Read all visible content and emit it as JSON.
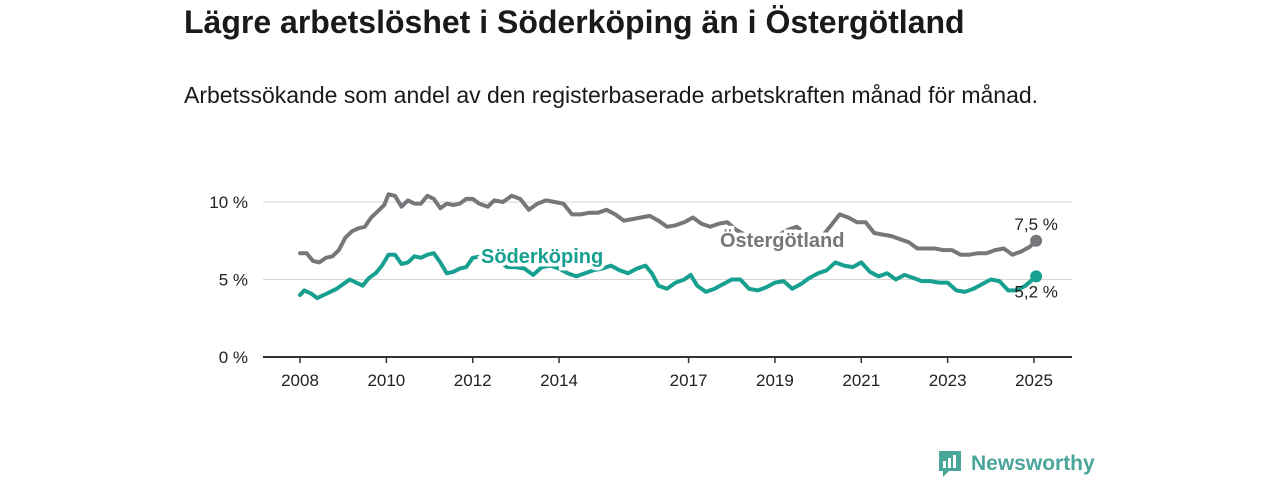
{
  "title": "Lägre arbetslöshet i Söderköping än i Östergötland",
  "subtitle": "Arbetssökande som andel av den registerbaserade arbetskraften månad för månad.",
  "brand": {
    "name": "Newsworthy",
    "icon": "bar-chart-badge-icon",
    "color": "#4aa59a"
  },
  "chart_data": {
    "type": "line",
    "title": "Lägre arbetslöshet i Söderköping än i Östergötland",
    "ylim": [
      0,
      11
    ],
    "yticks": [
      0,
      5,
      10
    ],
    "ytick_labels": [
      "0 %",
      "5 %",
      "10 %"
    ],
    "xlim": [
      2007.3,
      2026.0
    ],
    "xticks": [
      2008,
      2010,
      2012,
      2014,
      2017,
      2019,
      2021,
      2023,
      2025
    ],
    "xtick_labels": [
      "2008",
      "2010",
      "2012",
      "2014",
      "2017",
      "2019",
      "2021",
      "2023",
      "2025"
    ],
    "grid": true,
    "legend": "inline labels",
    "series": [
      {
        "name": "Östergötland",
        "color": "#77767b",
        "end_label": "7,5 %",
        "points": [
          [
            2008.0,
            6.7
          ],
          [
            2008.15,
            6.7
          ],
          [
            2008.3,
            6.2
          ],
          [
            2008.45,
            6.1
          ],
          [
            2008.6,
            6.4
          ],
          [
            2008.75,
            6.5
          ],
          [
            2008.9,
            6.9
          ],
          [
            2009.05,
            7.7
          ],
          [
            2009.2,
            8.1
          ],
          [
            2009.35,
            8.3
          ],
          [
            2009.5,
            8.4
          ],
          [
            2009.65,
            9.0
          ],
          [
            2009.8,
            9.4
          ],
          [
            2009.95,
            9.8
          ],
          [
            2010.05,
            10.5
          ],
          [
            2010.2,
            10.4
          ],
          [
            2010.35,
            9.7
          ],
          [
            2010.5,
            10.1
          ],
          [
            2010.65,
            9.9
          ],
          [
            2010.8,
            9.9
          ],
          [
            2010.95,
            10.4
          ],
          [
            2011.1,
            10.2
          ],
          [
            2011.25,
            9.6
          ],
          [
            2011.4,
            9.9
          ],
          [
            2011.55,
            9.8
          ],
          [
            2011.7,
            9.9
          ],
          [
            2011.85,
            10.2
          ],
          [
            2012.0,
            10.2
          ],
          [
            2012.15,
            9.9
          ],
          [
            2012.35,
            9.7
          ],
          [
            2012.5,
            10.1
          ],
          [
            2012.7,
            10.0
          ],
          [
            2012.9,
            10.4
          ],
          [
            2013.1,
            10.2
          ],
          [
            2013.3,
            9.5
          ],
          [
            2013.5,
            9.9
          ],
          [
            2013.7,
            10.1
          ],
          [
            2013.9,
            10.0
          ],
          [
            2014.1,
            9.9
          ],
          [
            2014.3,
            9.2
          ],
          [
            2014.5,
            9.2
          ],
          [
            2014.7,
            9.3
          ],
          [
            2014.9,
            9.3
          ],
          [
            2015.1,
            9.5
          ],
          [
            2015.3,
            9.2
          ],
          [
            2015.5,
            8.8
          ],
          [
            2015.7,
            8.9
          ],
          [
            2015.9,
            9.0
          ],
          [
            2016.1,
            9.1
          ],
          [
            2016.3,
            8.8
          ],
          [
            2016.5,
            8.4
          ],
          [
            2016.7,
            8.5
          ],
          [
            2016.9,
            8.7
          ],
          [
            2017.1,
            9.0
          ],
          [
            2017.3,
            8.6
          ],
          [
            2017.5,
            8.4
          ],
          [
            2017.7,
            8.6
          ],
          [
            2017.9,
            8.7
          ],
          [
            2018.1,
            8.2
          ],
          [
            2018.3,
            7.9
          ],
          [
            2018.5,
            7.8
          ],
          [
            2018.7,
            7.7
          ],
          [
            2018.9,
            7.7
          ],
          [
            2019.1,
            7.9
          ],
          [
            2019.3,
            8.2
          ],
          [
            2019.5,
            8.4
          ],
          [
            2019.7,
            8.0
          ],
          [
            2019.9,
            7.7
          ],
          [
            2020.1,
            7.8
          ],
          [
            2020.3,
            8.5
          ],
          [
            2020.5,
            9.2
          ],
          [
            2020.7,
            9.0
          ],
          [
            2020.9,
            8.7
          ],
          [
            2021.1,
            8.7
          ],
          [
            2021.3,
            8.0
          ],
          [
            2021.5,
            7.9
          ],
          [
            2021.7,
            7.8
          ],
          [
            2021.9,
            7.6
          ],
          [
            2022.1,
            7.4
          ],
          [
            2022.3,
            7.0
          ],
          [
            2022.5,
            7.0
          ],
          [
            2022.7,
            7.0
          ],
          [
            2022.9,
            6.9
          ],
          [
            2023.1,
            6.9
          ],
          [
            2023.3,
            6.6
          ],
          [
            2023.5,
            6.6
          ],
          [
            2023.7,
            6.7
          ],
          [
            2023.9,
            6.7
          ],
          [
            2024.1,
            6.9
          ],
          [
            2024.3,
            7.0
          ],
          [
            2024.5,
            6.6
          ],
          [
            2024.7,
            6.8
          ],
          [
            2024.9,
            7.1
          ],
          [
            2025.05,
            7.5
          ]
        ]
      },
      {
        "name": "Söderköping",
        "color": "#17a090",
        "end_label": "5,2 %",
        "points": [
          [
            2008.0,
            4.0
          ],
          [
            2008.1,
            4.3
          ],
          [
            2008.25,
            4.1
          ],
          [
            2008.4,
            3.8
          ],
          [
            2008.55,
            4.0
          ],
          [
            2008.7,
            4.2
          ],
          [
            2008.85,
            4.4
          ],
          [
            2009.0,
            4.7
          ],
          [
            2009.15,
            5.0
          ],
          [
            2009.3,
            4.8
          ],
          [
            2009.45,
            4.6
          ],
          [
            2009.6,
            5.1
          ],
          [
            2009.75,
            5.4
          ],
          [
            2009.9,
            5.9
          ],
          [
            2010.05,
            6.6
          ],
          [
            2010.2,
            6.6
          ],
          [
            2010.35,
            6.0
          ],
          [
            2010.5,
            6.1
          ],
          [
            2010.65,
            6.5
          ],
          [
            2010.8,
            6.4
          ],
          [
            2010.95,
            6.6
          ],
          [
            2011.1,
            6.7
          ],
          [
            2011.25,
            6.1
          ],
          [
            2011.4,
            5.4
          ],
          [
            2011.55,
            5.5
          ],
          [
            2011.7,
            5.7
          ],
          [
            2011.85,
            5.8
          ],
          [
            2012.0,
            6.4
          ],
          [
            2012.2,
            6.5
          ],
          [
            2012.4,
            6.3
          ],
          [
            2012.6,
            6.2
          ],
          [
            2012.8,
            5.8
          ],
          [
            2013.0,
            5.8
          ],
          [
            2013.2,
            5.7
          ],
          [
            2013.4,
            5.3
          ],
          [
            2013.6,
            5.8
          ],
          [
            2013.8,
            5.9
          ],
          [
            2014.0,
            5.7
          ],
          [
            2014.2,
            5.4
          ],
          [
            2014.4,
            5.2
          ],
          [
            2014.6,
            5.4
          ],
          [
            2014.8,
            5.6
          ],
          [
            2015.0,
            5.7
          ],
          [
            2015.2,
            5.9
          ],
          [
            2015.4,
            5.6
          ],
          [
            2015.6,
            5.4
          ],
          [
            2015.8,
            5.7
          ],
          [
            2016.0,
            5.9
          ],
          [
            2016.15,
            5.4
          ],
          [
            2016.3,
            4.6
          ],
          [
            2016.5,
            4.4
          ],
          [
            2016.7,
            4.8
          ],
          [
            2016.9,
            5.0
          ],
          [
            2017.05,
            5.3
          ],
          [
            2017.2,
            4.6
          ],
          [
            2017.4,
            4.2
          ],
          [
            2017.6,
            4.4
          ],
          [
            2017.8,
            4.7
          ],
          [
            2018.0,
            5.0
          ],
          [
            2018.2,
            5.0
          ],
          [
            2018.4,
            4.4
          ],
          [
            2018.6,
            4.3
          ],
          [
            2018.8,
            4.5
          ],
          [
            2019.0,
            4.8
          ],
          [
            2019.2,
            4.9
          ],
          [
            2019.4,
            4.4
          ],
          [
            2019.6,
            4.7
          ],
          [
            2019.8,
            5.1
          ],
          [
            2020.0,
            5.4
          ],
          [
            2020.2,
            5.6
          ],
          [
            2020.4,
            6.1
          ],
          [
            2020.6,
            5.9
          ],
          [
            2020.8,
            5.8
          ],
          [
            2021.0,
            6.1
          ],
          [
            2021.2,
            5.5
          ],
          [
            2021.4,
            5.2
          ],
          [
            2021.6,
            5.4
          ],
          [
            2021.8,
            5.0
          ],
          [
            2022.0,
            5.3
          ],
          [
            2022.2,
            5.1
          ],
          [
            2022.4,
            4.9
          ],
          [
            2022.6,
            4.9
          ],
          [
            2022.8,
            4.8
          ],
          [
            2023.0,
            4.8
          ],
          [
            2023.2,
            4.3
          ],
          [
            2023.4,
            4.2
          ],
          [
            2023.6,
            4.4
          ],
          [
            2023.8,
            4.7
          ],
          [
            2024.0,
            5.0
          ],
          [
            2024.2,
            4.9
          ],
          [
            2024.4,
            4.3
          ],
          [
            2024.6,
            4.3
          ],
          [
            2024.8,
            4.6
          ],
          [
            2025.05,
            5.2
          ]
        ]
      }
    ]
  }
}
